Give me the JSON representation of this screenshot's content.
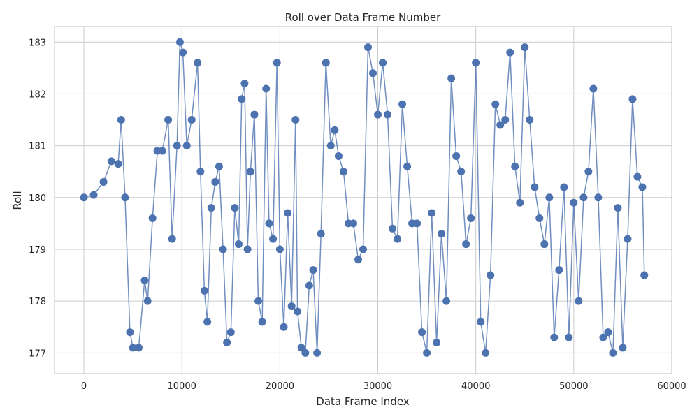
{
  "chart_data": {
    "type": "line",
    "title": "Roll over Data Frame Number",
    "xlabel": "Data Frame Index",
    "ylabel": "Roll",
    "xlim": [
      -3000,
      60000
    ],
    "ylim": [
      176.6,
      183.3
    ],
    "x_ticks": [
      0,
      10000,
      20000,
      30000,
      40000,
      50000,
      60000
    ],
    "y_ticks": [
      177,
      178,
      179,
      180,
      181,
      182,
      183
    ],
    "x_tick_labels": [
      "0",
      "10000",
      "20000",
      "30000",
      "40000",
      "50000",
      "60000"
    ],
    "y_tick_labels": [
      "177",
      "178",
      "179",
      "180",
      "181",
      "182",
      "183"
    ],
    "grid": true,
    "markers": true,
    "color": "#4c72b0",
    "series": [
      {
        "x": [
          0,
          1000,
          2000,
          2800,
          3500,
          3800,
          4200,
          4700,
          5000,
          5600,
          6200,
          6500,
          7000,
          7500,
          8000,
          8600,
          9000,
          9500,
          9800,
          10100,
          10500,
          11000,
          11600,
          11900,
          12300,
          12600,
          13000,
          13400,
          13800,
          14200,
          14600,
          15000,
          15400,
          15800,
          16100,
          16400,
          16700,
          17000,
          17400,
          17800,
          18200,
          18600,
          18900,
          19300,
          19700,
          20000,
          20400,
          20800,
          21200,
          21600,
          21800,
          22200,
          22600,
          23000,
          23400,
          23800,
          24200,
          24700,
          25200,
          25600,
          26000,
          26500,
          27000,
          27500,
          28000,
          28500,
          29000,
          29500,
          30000,
          30500,
          31000,
          31500,
          32000,
          32500,
          33000,
          33500,
          34000,
          34500,
          35000,
          35500,
          36000,
          36500,
          37000,
          37500,
          38000,
          38500,
          39000,
          39500,
          40000,
          40500,
          41000,
          41500,
          42000,
          42500,
          43000,
          43500,
          44000,
          44500,
          45000,
          45500,
          46000,
          46500,
          47000,
          47500,
          48000,
          48500,
          49000,
          49500,
          50000,
          50500,
          51000,
          51500,
          52000,
          52500,
          53000,
          53500,
          54000,
          54500,
          55000,
          55500,
          56000,
          56500,
          57000,
          57200
        ],
        "y": [
          180.0,
          180.05,
          180.3,
          180.7,
          180.65,
          181.5,
          180.0,
          177.4,
          177.1,
          177.1,
          178.4,
          178.0,
          179.6,
          180.9,
          180.9,
          181.5,
          179.2,
          181.0,
          183.0,
          182.8,
          181.0,
          181.5,
          182.6,
          180.5,
          178.2,
          177.6,
          179.8,
          180.3,
          180.6,
          179.0,
          177.2,
          177.4,
          179.8,
          179.1,
          181.9,
          182.2,
          179.0,
          180.5,
          181.6,
          178.0,
          177.6,
          182.1,
          179.5,
          179.2,
          182.6,
          179.0,
          177.5,
          179.7,
          177.9,
          181.5,
          177.8,
          177.1,
          177.0,
          178.3,
          178.6,
          177.0,
          179.3,
          182.6,
          181.0,
          181.3,
          180.8,
          180.5,
          179.5,
          179.5,
          178.8,
          179.0,
          182.9,
          182.4,
          181.6,
          182.6,
          181.6,
          179.4,
          179.2,
          181.8,
          180.6,
          179.5,
          179.5,
          177.4,
          177.0,
          179.7,
          177.2,
          179.3,
          178.0,
          182.3,
          180.8,
          180.5,
          179.1,
          179.6,
          182.6,
          177.6,
          177.0,
          178.5,
          181.8,
          181.4,
          181.5,
          182.8,
          180.6,
          179.9,
          182.9,
          181.5,
          180.2,
          179.6,
          179.1,
          180.0,
          177.3,
          178.6,
          180.2,
          177.3,
          179.9,
          178.0,
          180.0,
          180.5,
          182.1,
          180.0,
          177.3,
          177.4,
          177.0,
          179.8,
          177.1,
          179.2,
          181.9,
          180.4,
          180.2,
          178.5
        ]
      }
    ]
  }
}
